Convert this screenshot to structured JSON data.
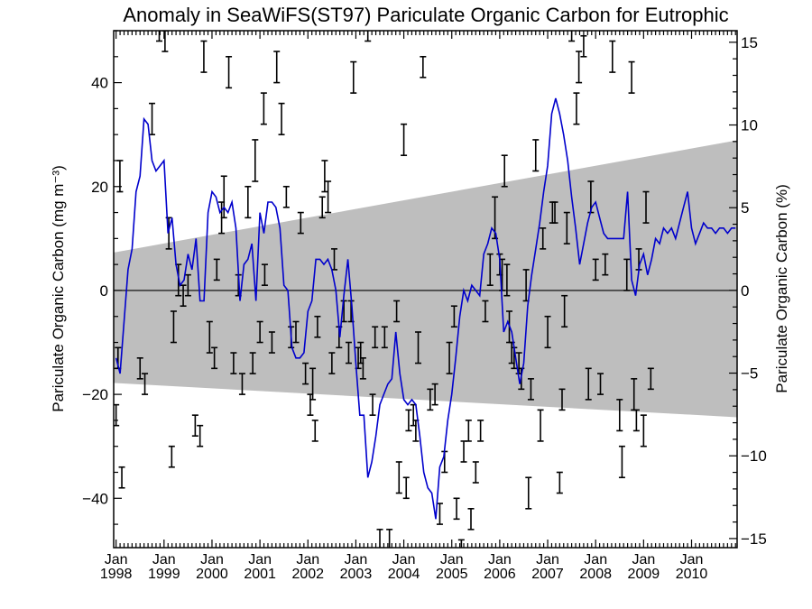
{
  "chart_data": {
    "type": "line",
    "title": "Anomaly in SeaWiFS(ST97) Pariculate Organic Carbon for Eutrophic",
    "ylabel_left": "Pariculate Organic Carbon (mg m⁻³)",
    "ylabel_right": "Pariculate Organic Carbon (%)",
    "xlabels": [
      {
        "month": "Jan",
        "year": "1998",
        "x": 1998.0
      },
      {
        "month": "Jan",
        "year": "1999",
        "x": 1999.0
      },
      {
        "month": "Jan",
        "year": "2000",
        "x": 2000.0
      },
      {
        "month": "Jan",
        "year": "2001",
        "x": 2001.0
      },
      {
        "month": "Jan",
        "year": "2002",
        "x": 2002.0
      },
      {
        "month": "Jan",
        "year": "2003",
        "x": 2003.0
      },
      {
        "month": "Jan",
        "year": "2004",
        "x": 2004.0
      },
      {
        "month": "Jan",
        "year": "2005",
        "x": 2005.0
      },
      {
        "month": "Jan",
        "year": "2006",
        "x": 2006.0
      },
      {
        "month": "Jan",
        "year": "2007",
        "x": 2007.0
      },
      {
        "month": "Jan",
        "year": "2008",
        "x": 2008.0
      },
      {
        "month": "Jan",
        "year": "2009",
        "x": 2009.0
      },
      {
        "month": "Jan",
        "year": "2010",
        "x": 2010.0
      }
    ],
    "xlim": [
      1997.95,
      2010.95
    ],
    "ylim_left": [
      -49.5,
      50
    ],
    "yticks_left": [
      -40,
      -20,
      0,
      20,
      40
    ],
    "ylim_right": [
      -15.55,
      15.7
    ],
    "yticks_right": [
      -15,
      -10,
      -5,
      0,
      5,
      10,
      15
    ],
    "band": {
      "color": "#bebebe",
      "upper_start": 7.3,
      "upper_end": 28.9,
      "lower_start": -17.8,
      "lower_end": -24.4
    },
    "zero_line": 0,
    "line_series": {
      "color": "#0000cc",
      "x": [
        1998.0,
        1998.083,
        1998.167,
        1998.25,
        1998.333,
        1998.417,
        1998.5,
        1998.583,
        1998.667,
        1998.75,
        1998.833,
        1998.917,
        1999.0,
        1999.083,
        1999.167,
        1999.25,
        1999.333,
        1999.417,
        1999.5,
        1999.583,
        1999.667,
        1999.75,
        1999.833,
        1999.917,
        2000.0,
        2000.083,
        2000.167,
        2000.25,
        2000.333,
        2000.417,
        2000.5,
        2000.583,
        2000.667,
        2000.75,
        2000.833,
        2000.917,
        2001.0,
        2001.083,
        2001.167,
        2001.25,
        2001.333,
        2001.417,
        2001.5,
        2001.583,
        2001.667,
        2001.75,
        2001.833,
        2001.917,
        2002.0,
        2002.083,
        2002.167,
        2002.25,
        2002.333,
        2002.417,
        2002.5,
        2002.583,
        2002.667,
        2002.75,
        2002.833,
        2002.917,
        2003.0,
        2003.083,
        2003.167,
        2003.25,
        2003.333,
        2003.417,
        2003.5,
        2003.583,
        2003.667,
        2003.75,
        2003.833,
        2003.917,
        2004.0,
        2004.083,
        2004.167,
        2004.25,
        2004.333,
        2004.417,
        2004.5,
        2004.583,
        2004.667,
        2004.75,
        2004.833,
        2004.917,
        2005.0,
        2005.083,
        2005.167,
        2005.25,
        2005.333,
        2005.417,
        2005.5,
        2005.583,
        2005.667,
        2005.75,
        2005.833,
        2005.917,
        2006.0,
        2006.083,
        2006.167,
        2006.25,
        2006.333,
        2006.417,
        2006.5,
        2006.583,
        2006.667,
        2006.75,
        2006.833,
        2006.917,
        2007.0,
        2007.083,
        2007.167,
        2007.25,
        2007.333,
        2007.417,
        2007.5,
        2007.583,
        2007.667,
        2007.75,
        2007.833,
        2007.917,
        2008.0,
        2008.083,
        2008.167,
        2008.25,
        2008.333,
        2008.417,
        2008.5,
        2008.583,
        2008.667,
        2008.75,
        2008.833,
        2008.917,
        2009.0,
        2009.083,
        2009.167,
        2009.25,
        2009.333,
        2009.417,
        2009.5,
        2009.583,
        2009.667,
        2009.75,
        2009.833,
        2009.917,
        2010.0,
        2010.083,
        2010.167,
        2010.25,
        2010.333,
        2010.417,
        2010.5,
        2010.583,
        2010.667,
        2010.75,
        2010.833,
        2010.917
      ],
      "y": [
        -13,
        -16,
        -6,
        4,
        8,
        19,
        22,
        33,
        32,
        25,
        23,
        24,
        25,
        11,
        14,
        5,
        1,
        2,
        7,
        4,
        10,
        -2,
        -2,
        15,
        19,
        18,
        15,
        16,
        15,
        17,
        12,
        -2,
        5,
        6,
        9,
        -2,
        15,
        11,
        17,
        17,
        16,
        12,
        1,
        0,
        -11,
        -13,
        -13,
        -12,
        -4,
        -2,
        6,
        6,
        5,
        6,
        4,
        0,
        -9,
        -1,
        6,
        -3,
        -14,
        -24,
        -24,
        -36,
        -33,
        -28,
        -22,
        -20,
        -18,
        -17,
        -8,
        -16,
        -21,
        -22,
        -21,
        -22,
        -28,
        -35,
        -38,
        -39,
        -44,
        -34,
        -32,
        -25,
        -20,
        -13,
        -5,
        0,
        -2,
        1,
        0,
        -1,
        7,
        9,
        12,
        11,
        6,
        -8,
        -6,
        -8,
        -13,
        -18,
        -14,
        -3,
        3,
        8,
        13,
        19,
        24,
        34,
        37,
        34,
        30,
        25,
        18,
        12,
        5,
        9,
        13,
        16,
        17,
        14,
        11,
        10,
        10,
        10,
        10,
        10,
        19,
        2,
        -1,
        5,
        7,
        3,
        6,
        10,
        9,
        12,
        11,
        12,
        10,
        13,
        16,
        19,
        12,
        9,
        11,
        13,
        12,
        12,
        11,
        12,
        12,
        11,
        12,
        12
      ],
      "y_actual_note": ""
    },
    "error_bars": [
      {
        "x": 1998.0,
        "y": -24,
        "e": 2
      },
      {
        "x": 1998.04,
        "y": -13,
        "e": 2
      },
      {
        "x": 1998.12,
        "y": -36,
        "e": 2
      },
      {
        "x": 1998.08,
        "y": 22,
        "e": 3
      },
      {
        "x": 1998.5,
        "y": -15,
        "e": 2
      },
      {
        "x": 1998.6,
        "y": -18,
        "e": 2
      },
      {
        "x": 1998.75,
        "y": 33,
        "e": 3
      },
      {
        "x": 1998.9,
        "y": 50,
        "e": 2
      },
      {
        "x": 1999.02,
        "y": 48,
        "e": 2
      },
      {
        "x": 1999.1,
        "y": 11,
        "e": 3
      },
      {
        "x": 1999.16,
        "y": -32,
        "e": 2
      },
      {
        "x": 1999.2,
        "y": -7,
        "e": 3
      },
      {
        "x": 1999.3,
        "y": 2,
        "e": 3
      },
      {
        "x": 1999.4,
        "y": -1,
        "e": 2
      },
      {
        "x": 1999.5,
        "y": 1,
        "e": 2
      },
      {
        "x": 1999.65,
        "y": -26,
        "e": 2
      },
      {
        "x": 1999.75,
        "y": -28,
        "e": 2
      },
      {
        "x": 1999.83,
        "y": 45,
        "e": 3
      },
      {
        "x": 1999.95,
        "y": -9,
        "e": 3
      },
      {
        "x": 2000.05,
        "y": -13,
        "e": 2
      },
      {
        "x": 2000.1,
        "y": 4,
        "e": 2
      },
      {
        "x": 2000.2,
        "y": 14,
        "e": 3
      },
      {
        "x": 2000.25,
        "y": 18,
        "e": 4
      },
      {
        "x": 2000.35,
        "y": 42,
        "e": 3
      },
      {
        "x": 2000.45,
        "y": -14,
        "e": 2
      },
      {
        "x": 2000.55,
        "y": 1,
        "e": 2
      },
      {
        "x": 2000.63,
        "y": -18,
        "e": 2
      },
      {
        "x": 2000.75,
        "y": 17,
        "e": 3
      },
      {
        "x": 2000.85,
        "y": -14,
        "e": 2
      },
      {
        "x": 2000.9,
        "y": 25,
        "e": 4
      },
      {
        "x": 2001.0,
        "y": -8,
        "e": 2
      },
      {
        "x": 2001.08,
        "y": 35,
        "e": 3
      },
      {
        "x": 2001.1,
        "y": 3,
        "e": 2
      },
      {
        "x": 2001.25,
        "y": -10,
        "e": 2
      },
      {
        "x": 2001.35,
        "y": 43,
        "e": 3
      },
      {
        "x": 2001.45,
        "y": 33,
        "e": 3
      },
      {
        "x": 2001.55,
        "y": 18,
        "e": 2
      },
      {
        "x": 2001.65,
        "y": -9,
        "e": 2
      },
      {
        "x": 2001.75,
        "y": -8,
        "e": 2
      },
      {
        "x": 2001.85,
        "y": 13,
        "e": 2
      },
      {
        "x": 2001.95,
        "y": -16,
        "e": 2
      },
      {
        "x": 2002.05,
        "y": -22,
        "e": 2
      },
      {
        "x": 2002.1,
        "y": -18,
        "e": 3
      },
      {
        "x": 2002.15,
        "y": -27,
        "e": 2
      },
      {
        "x": 2002.2,
        "y": -7,
        "e": 2
      },
      {
        "x": 2002.3,
        "y": 16,
        "e": 2
      },
      {
        "x": 2002.35,
        "y": 22,
        "e": 3
      },
      {
        "x": 2002.42,
        "y": 18,
        "e": 3
      },
      {
        "x": 2002.5,
        "y": -14,
        "e": 2
      },
      {
        "x": 2002.55,
        "y": 6,
        "e": 2
      },
      {
        "x": 2002.65,
        "y": -9,
        "e": 2
      },
      {
        "x": 2002.75,
        "y": -4,
        "e": 2
      },
      {
        "x": 2002.85,
        "y": -12,
        "e": 2
      },
      {
        "x": 2002.9,
        "y": -4,
        "e": 2
      },
      {
        "x": 2002.95,
        "y": 41,
        "e": 3
      },
      {
        "x": 2003.05,
        "y": -13,
        "e": 2
      },
      {
        "x": 2003.1,
        "y": -12,
        "e": 2
      },
      {
        "x": 2003.15,
        "y": -15,
        "e": 2
      },
      {
        "x": 2003.25,
        "y": 50,
        "e": 2
      },
      {
        "x": 2003.35,
        "y": -22,
        "e": 2
      },
      {
        "x": 2003.4,
        "y": -9,
        "e": 2
      },
      {
        "x": 2003.5,
        "y": -48,
        "e": 2
      },
      {
        "x": 2003.6,
        "y": -9,
        "e": 2
      },
      {
        "x": 2003.7,
        "y": -48,
        "e": 2
      },
      {
        "x": 2003.85,
        "y": -4,
        "e": 2
      },
      {
        "x": 2003.9,
        "y": -36,
        "e": 3
      },
      {
        "x": 2004.0,
        "y": 29,
        "e": 3
      },
      {
        "x": 2004.05,
        "y": -38,
        "e": 2
      },
      {
        "x": 2004.1,
        "y": -25,
        "e": 2
      },
      {
        "x": 2004.2,
        "y": -24,
        "e": 2
      },
      {
        "x": 2004.25,
        "y": -27,
        "e": 2
      },
      {
        "x": 2004.3,
        "y": -11,
        "e": 3
      },
      {
        "x": 2004.4,
        "y": 43,
        "e": 2
      },
      {
        "x": 2004.55,
        "y": -21,
        "e": 2
      },
      {
        "x": 2004.65,
        "y": -20,
        "e": 2
      },
      {
        "x": 2004.75,
        "y": -43,
        "e": 2
      },
      {
        "x": 2004.85,
        "y": -33,
        "e": 2
      },
      {
        "x": 2004.95,
        "y": -13,
        "e": 3
      },
      {
        "x": 2005.05,
        "y": -5,
        "e": 2
      },
      {
        "x": 2005.1,
        "y": -42,
        "e": 2
      },
      {
        "x": 2005.2,
        "y": -50,
        "e": 2
      },
      {
        "x": 2005.25,
        "y": -31,
        "e": 2
      },
      {
        "x": 2005.35,
        "y": -27,
        "e": 2
      },
      {
        "x": 2005.4,
        "y": -44,
        "e": 2
      },
      {
        "x": 2005.5,
        "y": -35,
        "e": 2
      },
      {
        "x": 2005.6,
        "y": -27,
        "e": 2
      },
      {
        "x": 2005.7,
        "y": -4,
        "e": 2
      },
      {
        "x": 2005.8,
        "y": 4,
        "e": 3
      },
      {
        "x": 2005.9,
        "y": 14,
        "e": 4
      },
      {
        "x": 2006.0,
        "y": 5,
        "e": 2
      },
      {
        "x": 2006.05,
        "y": 3,
        "e": 3
      },
      {
        "x": 2006.1,
        "y": 23,
        "e": 3
      },
      {
        "x": 2006.15,
        "y": 2,
        "e": 3
      },
      {
        "x": 2006.2,
        "y": -7,
        "e": 3
      },
      {
        "x": 2006.25,
        "y": -12,
        "e": 2
      },
      {
        "x": 2006.3,
        "y": -13,
        "e": 2
      },
      {
        "x": 2006.4,
        "y": -14,
        "e": 2
      },
      {
        "x": 2006.45,
        "y": -17,
        "e": 2
      },
      {
        "x": 2006.55,
        "y": 1,
        "e": 3
      },
      {
        "x": 2006.6,
        "y": -39,
        "e": 3
      },
      {
        "x": 2006.65,
        "y": -19,
        "e": 2
      },
      {
        "x": 2006.75,
        "y": 26,
        "e": 3
      },
      {
        "x": 2006.85,
        "y": -26,
        "e": 3
      },
      {
        "x": 2006.9,
        "y": 10,
        "e": 2
      },
      {
        "x": 2007.0,
        "y": -8,
        "e": 3
      },
      {
        "x": 2007.1,
        "y": 15,
        "e": 2
      },
      {
        "x": 2007.15,
        "y": 15,
        "e": 2
      },
      {
        "x": 2007.25,
        "y": -37,
        "e": 2
      },
      {
        "x": 2007.3,
        "y": -21,
        "e": 2
      },
      {
        "x": 2007.35,
        "y": -4,
        "e": 3
      },
      {
        "x": 2007.4,
        "y": 12,
        "e": 3
      },
      {
        "x": 2007.5,
        "y": 50,
        "e": 2
      },
      {
        "x": 2007.6,
        "y": 35,
        "e": 3
      },
      {
        "x": 2007.65,
        "y": 43,
        "e": 3
      },
      {
        "x": 2007.75,
        "y": 47,
        "e": 2
      },
      {
        "x": 2007.85,
        "y": -18,
        "e": 3
      },
      {
        "x": 2007.9,
        "y": 18,
        "e": 3
      },
      {
        "x": 2008.0,
        "y": 4,
        "e": 2
      },
      {
        "x": 2008.1,
        "y": -18,
        "e": 2
      },
      {
        "x": 2008.2,
        "y": 5,
        "e": 2
      },
      {
        "x": 2008.35,
        "y": 45,
        "e": 3
      },
      {
        "x": 2008.5,
        "y": -24,
        "e": 3
      },
      {
        "x": 2008.55,
        "y": -33,
        "e": 3
      },
      {
        "x": 2008.65,
        "y": 3,
        "e": 3
      },
      {
        "x": 2008.75,
        "y": 41,
        "e": 3
      },
      {
        "x": 2008.8,
        "y": -20,
        "e": 3
      },
      {
        "x": 2008.85,
        "y": -25,
        "e": 2
      },
      {
        "x": 2008.9,
        "y": 6,
        "e": 2
      },
      {
        "x": 2009.0,
        "y": -27,
        "e": 3
      },
      {
        "x": 2009.05,
        "y": 16,
        "e": 3
      },
      {
        "x": 2009.15,
        "y": -17,
        "e": 2
      }
    ]
  }
}
